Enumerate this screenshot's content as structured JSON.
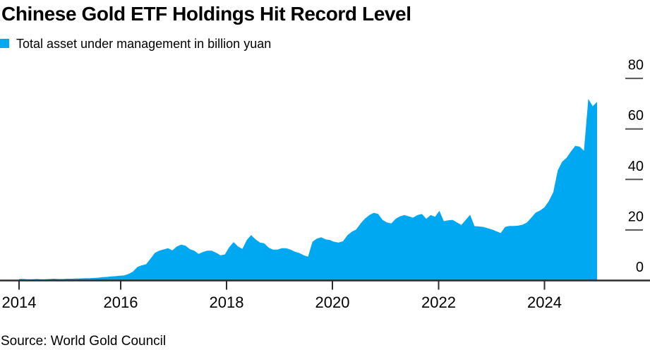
{
  "header": {
    "title": "Chinese Gold ETF Holdings Hit Record Level"
  },
  "legend": {
    "label": "Total asset under management in billion yuan",
    "swatch_color": "#00A8F1"
  },
  "footer": {
    "source": "Source: World Gold Council"
  },
  "chart_data": {
    "type": "area",
    "title": "Chinese Gold ETF Holdings Hit Record Level",
    "series_name": "Total asset under management in billion yuan",
    "unit": "billion yuan",
    "area_color": "#00A8F1",
    "grid": false,
    "legend_position": "top-left",
    "y_axis_side": "right",
    "ylim": [
      0,
      80
    ],
    "y_tick_labels": [
      "0",
      "20",
      "40",
      "60",
      "80"
    ],
    "x_tick_labels": [
      "2014",
      "2016",
      "2018",
      "2020",
      "2022",
      "2024"
    ],
    "x_start": "2014-01",
    "x_end": "2025-01",
    "frequency": "monthly",
    "values_monthly": [
      0.6,
      0.6,
      0.5,
      0.5,
      0.6,
      0.5,
      0.5,
      0.6,
      0.7,
      0.6,
      0.6,
      0.7,
      0.7,
      0.8,
      0.8,
      0.9,
      0.9,
      1.0,
      1.1,
      1.3,
      1.4,
      1.6,
      1.7,
      1.9,
      2.0,
      2.6,
      3.5,
      5.3,
      6.0,
      6.4,
      8.6,
      10.9,
      11.8,
      12.3,
      12.8,
      11.9,
      13.4,
      14.2,
      13.8,
      12.4,
      11.8,
      10.5,
      11.3,
      11.8,
      11.8,
      11.0,
      10.0,
      10.3,
      13.2,
      15.2,
      13.5,
      12.5,
      16.0,
      18.0,
      16.3,
      15.0,
      14.7,
      13.0,
      12.2,
      12.2,
      12.8,
      12.8,
      12.2,
      11.4,
      10.9,
      10.0,
      9.4,
      15.3,
      16.6,
      17.1,
      16.3,
      16.0,
      15.3,
      15.0,
      15.6,
      17.9,
      19.3,
      20.2,
      22.6,
      24.5,
      25.9,
      26.8,
      26.3,
      24.0,
      23.0,
      22.6,
      24.4,
      25.4,
      25.9,
      25.4,
      24.9,
      25.9,
      26.3,
      24.4,
      25.9,
      25.2,
      27.6,
      23.5,
      23.8,
      24.0,
      23.0,
      22.0,
      24.0,
      26.0,
      21.5,
      21.4,
      21.2,
      20.7,
      20.2,
      19.5,
      18.8,
      21.2,
      21.6,
      21.6,
      21.7,
      22.1,
      23.0,
      24.9,
      26.9,
      27.7,
      29.0,
      31.5,
      35.0,
      43.5,
      47.0,
      48.5,
      51.0,
      53.3,
      53.0,
      51.4,
      71.9,
      69.0,
      70.7
    ]
  }
}
